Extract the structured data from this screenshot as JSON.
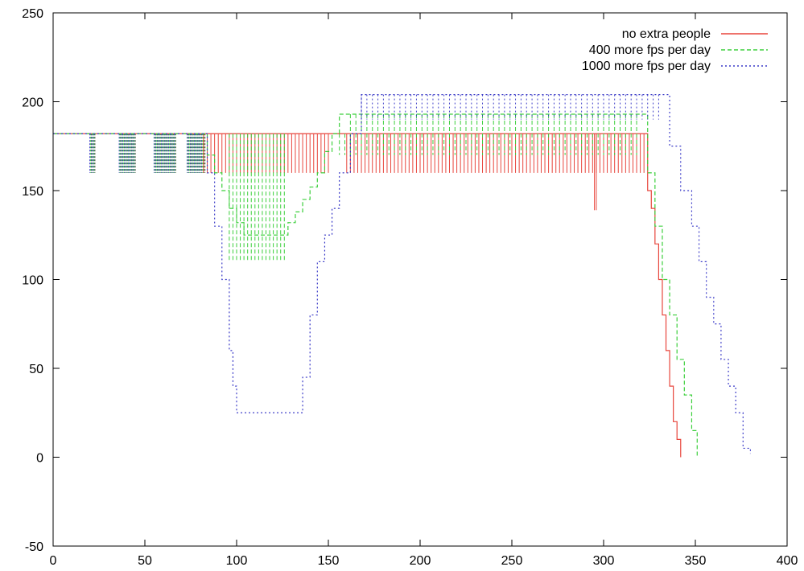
{
  "chart_data": {
    "type": "line",
    "title": "",
    "xlabel": "",
    "ylabel": "",
    "xlim": [
      0,
      400
    ],
    "ylim": [
      -50,
      250
    ],
    "xticks": [
      0,
      50,
      100,
      150,
      200,
      250,
      300,
      350,
      400
    ],
    "yticks": [
      -50,
      0,
      50,
      100,
      150,
      200,
      250
    ],
    "grid": false,
    "legend_position": "top-right",
    "series": [
      {
        "name": "no extra people",
        "color": "#e8453c",
        "dash": "solid",
        "base": 182,
        "x": [
          0,
          82,
          150,
          160,
          322,
          324,
          326,
          328,
          330,
          332,
          334,
          336,
          338,
          340,
          342
        ],
        "y": [
          182,
          182,
          182,
          182,
          182,
          150,
          140,
          120,
          100,
          80,
          60,
          40,
          20,
          10,
          0
        ],
        "dips": [
          {
            "x_start": 82,
            "x_end": 150,
            "step": 2,
            "low": 160
          },
          {
            "x_start": 160,
            "x_end": 322,
            "step": 2,
            "low": 160
          },
          {
            "x_start": 295,
            "x_end": 296,
            "step": 1,
            "low": 139
          }
        ]
      },
      {
        "name": "400 more fps per day",
        "color": "#3ccf3c",
        "dash": "dashed",
        "base": 182,
        "x": [
          0,
          80,
          84,
          88,
          92,
          96,
          100,
          104,
          108,
          112,
          116,
          120,
          124,
          128,
          132,
          136,
          140,
          144,
          148,
          152,
          156,
          320,
          324,
          328,
          332,
          336,
          340,
          344,
          348,
          351
        ],
        "y": [
          182,
          182,
          170,
          160,
          150,
          140,
          132,
          125,
          125,
          125,
          125,
          125,
          125,
          132,
          138,
          145,
          152,
          160,
          172,
          182,
          193,
          193,
          160,
          130,
          100,
          80,
          55,
          35,
          15,
          0
        ],
        "dips": [
          {
            "x_start": 96,
            "x_end": 126,
            "step": 2,
            "low": 111
          },
          {
            "x_start": 156,
            "x_end": 318,
            "step": 3,
            "low": 170
          }
        ]
      },
      {
        "name": "1000 more fps per day",
        "color": "#3c3cc8",
        "dash": "dotted",
        "base": 182,
        "x": [
          0,
          80,
          84,
          88,
          92,
          96,
          98,
          100,
          104,
          110,
          120,
          130,
          134,
          136,
          140,
          144,
          148,
          152,
          156,
          162,
          168,
          332,
          336,
          342,
          348,
          352,
          356,
          360,
          364,
          368,
          372,
          376,
          380
        ],
        "y": [
          182,
          182,
          160,
          130,
          100,
          60,
          40,
          25,
          25,
          25,
          25,
          25,
          25,
          45,
          80,
          110,
          125,
          140,
          160,
          182,
          204,
          204,
          175,
          150,
          130,
          110,
          90,
          75,
          55,
          40,
          25,
          5,
          2
        ],
        "dips": [
          {
            "x_start": 168,
            "x_end": 330,
            "step": 3,
            "low": 190
          }
        ]
      }
    ],
    "early_spikes": [
      {
        "x_start": 20,
        "x_end": 22,
        "low": 160
      },
      {
        "x_start": 36,
        "x_end": 44,
        "low": 160
      },
      {
        "x_start": 55,
        "x_end": 66,
        "low": 160
      },
      {
        "x_start": 73,
        "x_end": 82,
        "low": 160
      }
    ]
  }
}
